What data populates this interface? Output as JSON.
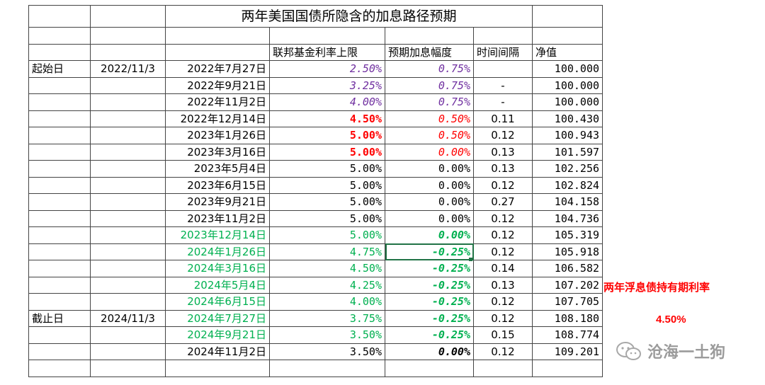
{
  "title": "两年美国国债所隐含的加息路径预期",
  "headers": {
    "fed_rate": "联邦基金利率上限",
    "hike": "预期加息幅度",
    "interval": "时间间隔",
    "nav": "净值"
  },
  "start": {
    "label": "起始日",
    "date": "2022/11/3"
  },
  "end": {
    "label": "截止日",
    "date": "2024/11/3"
  },
  "rows": [
    {
      "date": "2022年7月27日",
      "rate": "2.50%",
      "hike": "0.75%",
      "interval": "",
      "nav": "100.000"
    },
    {
      "date": "2022年9月21日",
      "rate": "3.25%",
      "hike": "0.75%",
      "interval": "-",
      "nav": "100.000"
    },
    {
      "date": "2022年11月2日",
      "rate": "4.00%",
      "hike": "0.75%",
      "interval": "-",
      "nav": "100.000"
    },
    {
      "date": "2022年12月14日",
      "rate": "4.50%",
      "hike": "0.50%",
      "interval": "0.11",
      "nav": "100.430"
    },
    {
      "date": "2023年1月26日",
      "rate": "5.00%",
      "hike": "0.50%",
      "interval": "0.12",
      "nav": "100.943"
    },
    {
      "date": "2023年3月16日",
      "rate": "5.00%",
      "hike": "0.00%",
      "interval": "0.13",
      "nav": "101.597"
    },
    {
      "date": "2023年5月4日",
      "rate": "5.00%",
      "hike": "0.00%",
      "interval": "0.13",
      "nav": "102.256"
    },
    {
      "date": "2023年6月15日",
      "rate": "5.00%",
      "hike": "0.00%",
      "interval": "0.12",
      "nav": "102.824"
    },
    {
      "date": "2023年9月21日",
      "rate": "5.00%",
      "hike": "0.00%",
      "interval": "0.27",
      "nav": "104.158"
    },
    {
      "date": "2023年11月2日",
      "rate": "5.00%",
      "hike": "0.00%",
      "interval": "0.12",
      "nav": "104.736"
    },
    {
      "date": "2023年12月14日",
      "rate": "5.00%",
      "hike": "0.00%",
      "interval": "0.12",
      "nav": "105.319"
    },
    {
      "date": "2024年1月26日",
      "rate": "4.75%",
      "hike": "-0.25%",
      "interval": "0.12",
      "nav": "105.918"
    },
    {
      "date": "2024年3月16日",
      "rate": "4.50%",
      "hike": "-0.25%",
      "interval": "0.14",
      "nav": "106.582"
    },
    {
      "date": "2024年5月4日",
      "rate": "4.25%",
      "hike": "-0.25%",
      "interval": "0.13",
      "nav": "107.202"
    },
    {
      "date": "2024年6月15日",
      "rate": "4.00%",
      "hike": "-0.25%",
      "interval": "0.12",
      "nav": "107.705"
    },
    {
      "date": "2024年7月27日",
      "rate": "3.75%",
      "hike": "-0.25%",
      "interval": "0.12",
      "nav": "108.180"
    },
    {
      "date": "2024年9月21日",
      "rate": "3.50%",
      "hike": "-0.25%",
      "interval": "0.15",
      "nav": "108.774"
    },
    {
      "date": "2024年11月2日",
      "rate": "3.50%",
      "hike": "0.00%",
      "interval": "0.12",
      "nav": "109.201"
    }
  ],
  "side_label": "两年浮息债持有期利率",
  "side_value": "4.50%",
  "watermark": "沧海一土狗",
  "icons": {
    "watermark_icon": "wechat-icon"
  },
  "colors": {
    "purple": "#7030a0",
    "red": "#ff0000",
    "green": "#00b050",
    "selection": "#217346"
  }
}
